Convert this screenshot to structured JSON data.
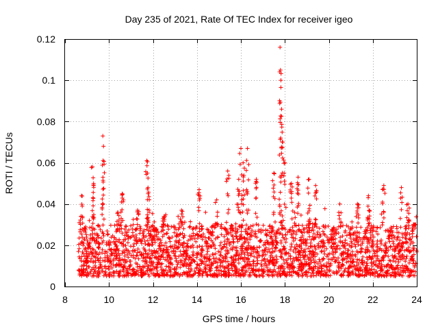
{
  "chart_data": {
    "type": "scatter",
    "title": "Day 235 of 2021, Rate Of TEC Index for receiver igeo",
    "xlabel": "GPS time / hours",
    "ylabel": "ROTI / TECUs",
    "xlim": [
      8,
      24
    ],
    "ylim": [
      0,
      0.12
    ],
    "xticks": [
      8,
      10,
      12,
      14,
      16,
      18,
      20,
      22,
      24
    ],
    "yticks": [
      0,
      0.02,
      0.04,
      0.06,
      0.08,
      0.1,
      0.12
    ],
    "xtick_labels": [
      "8",
      "10",
      "12",
      "14",
      "16",
      "18",
      "20",
      "22",
      "24"
    ],
    "ytick_labels": [
      "0",
      "0.02",
      "0.04",
      "0.06",
      "0.08",
      "0.1",
      "0.12"
    ],
    "grid": true,
    "marker": "plus",
    "color": "#ff0000",
    "data_span_hours": [
      8.6,
      24.0
    ],
    "baseline_band": [
      0.005,
      0.03
    ],
    "peaks": [
      {
        "x": 8.75,
        "y": 0.044
      },
      {
        "x": 9.25,
        "y": 0.058
      },
      {
        "x": 9.3,
        "y": 0.05
      },
      {
        "x": 9.72,
        "y": 0.073
      },
      {
        "x": 9.75,
        "y": 0.068
      },
      {
        "x": 10.4,
        "y": 0.036
      },
      {
        "x": 10.6,
        "y": 0.045
      },
      {
        "x": 11.3,
        "y": 0.037
      },
      {
        "x": 11.72,
        "y": 0.061
      },
      {
        "x": 11.75,
        "y": 0.055
      },
      {
        "x": 11.78,
        "y": 0.045
      },
      {
        "x": 12.5,
        "y": 0.034
      },
      {
        "x": 13.3,
        "y": 0.037
      },
      {
        "x": 14.1,
        "y": 0.047
      },
      {
        "x": 14.9,
        "y": 0.042
      },
      {
        "x": 15.4,
        "y": 0.056
      },
      {
        "x": 15.9,
        "y": 0.052
      },
      {
        "x": 16.0,
        "y": 0.067
      },
      {
        "x": 16.1,
        "y": 0.06
      },
      {
        "x": 16.3,
        "y": 0.067
      },
      {
        "x": 16.7,
        "y": 0.052
      },
      {
        "x": 17.5,
        "y": 0.055
      },
      {
        "x": 17.78,
        "y": 0.116
      },
      {
        "x": 17.8,
        "y": 0.105
      },
      {
        "x": 17.82,
        "y": 0.1
      },
      {
        "x": 17.85,
        "y": 0.086
      },
      {
        "x": 17.9,
        "y": 0.07
      },
      {
        "x": 18.0,
        "y": 0.06
      },
      {
        "x": 18.3,
        "y": 0.05
      },
      {
        "x": 18.6,
        "y": 0.053
      },
      {
        "x": 19.1,
        "y": 0.052
      },
      {
        "x": 19.4,
        "y": 0.049
      },
      {
        "x": 20.5,
        "y": 0.04
      },
      {
        "x": 21.3,
        "y": 0.04
      },
      {
        "x": 21.8,
        "y": 0.044
      },
      {
        "x": 22.5,
        "y": 0.049
      },
      {
        "x": 23.3,
        "y": 0.048
      },
      {
        "x": 23.6,
        "y": 0.04
      },
      {
        "x": 23.9,
        "y": 0.03
      }
    ]
  }
}
